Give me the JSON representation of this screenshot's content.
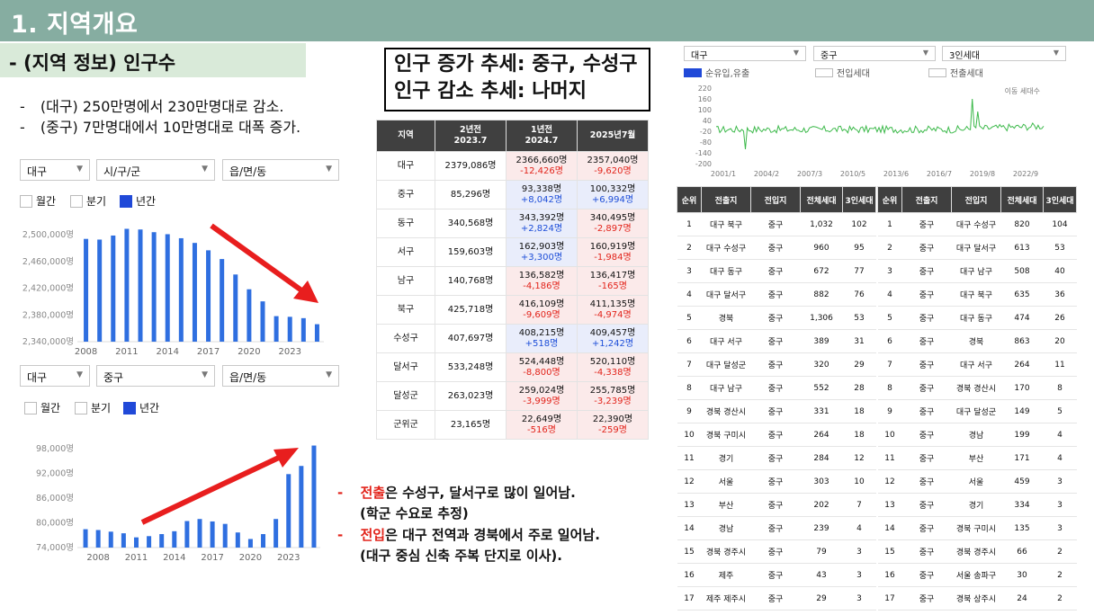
{
  "header": {
    "title": "1. 지역개요"
  },
  "subheader": {
    "title": "- (지역 정보) 인구수"
  },
  "bullets": [
    {
      "dash": "-",
      "text": "(대구) 250만명에서 230만명대로 감소."
    },
    {
      "dash": "-",
      "text": "(중구) 7만명대에서 10만명대로 대폭 증가."
    }
  ],
  "callout": {
    "line1": "인구 증가 추세: 중구, 수성구",
    "line2": "인구 감소 추세: 나머지"
  },
  "filters1": {
    "sido": "대구",
    "sigungu": "시/구/군",
    "eup": "읍/면/동"
  },
  "filters2": {
    "sido": "대구",
    "sigungu": "중구",
    "eup": "읍/면/동"
  },
  "period": {
    "monthly": "월간",
    "quarterly": "분기",
    "yearly": "년간"
  },
  "chart1": {
    "y_ticks": [
      "2,500,000명",
      "2,460,000명",
      "2,420,000명",
      "2,380,000명",
      "2,340,000명"
    ],
    "x_ticks": [
      "2008",
      "2011",
      "2014",
      "2017",
      "2020",
      "2023"
    ],
    "accent": "#2f6fe0",
    "arrow_color": "#e81e1e"
  },
  "chart2": {
    "y_ticks": [
      "98,000명",
      "92,000명",
      "86,000명",
      "80,000명",
      "74,000명"
    ],
    "x_ticks": [
      "2008",
      "2011",
      "2014",
      "2017",
      "2020",
      "2023"
    ],
    "accent": "#2f6fe0",
    "arrow_color": "#e81e1e"
  },
  "chart_data": [
    {
      "type": "bar",
      "categories": [
        "2008",
        "2009",
        "2010",
        "2011",
        "2012",
        "2013",
        "2014",
        "2015",
        "2016",
        "2017",
        "2018",
        "2019",
        "2020",
        "2021",
        "2022",
        "2023",
        "2024",
        "2025"
      ],
      "values": [
        2493000,
        2492000,
        2498000,
        2508000,
        2507000,
        2503000,
        2500000,
        2494000,
        2487000,
        2476000,
        2463000,
        2440000,
        2418000,
        2400000,
        2378000,
        2377000,
        2375000,
        2366000
      ],
      "ylim": [
        2340000,
        2510000
      ],
      "title": "",
      "xlabel": "",
      "ylabel": ""
    },
    {
      "type": "bar",
      "categories": [
        "2007",
        "2008",
        "2009",
        "2010",
        "2011",
        "2012",
        "2013",
        "2014",
        "2015",
        "2016",
        "2017",
        "2018",
        "2019",
        "2020",
        "2021",
        "2022",
        "2023",
        "2024",
        "2025"
      ],
      "values": [
        78500,
        78300,
        77900,
        77500,
        76500,
        76800,
        77300,
        78000,
        80500,
        81000,
        80400,
        79800,
        77700,
        76100,
        77300,
        81000,
        92000,
        94000,
        99000
      ],
      "ylim": [
        74000,
        100000
      ],
      "title": "",
      "xlabel": "",
      "ylabel": ""
    },
    {
      "type": "line",
      "series": [
        {
          "name": "순유입 유출"
        }
      ],
      "x_ticks": [
        "2001/1",
        "2004/2",
        "2007/3",
        "2010/5",
        "2013/6",
        "2016/7",
        "2019/8",
        "2022/9"
      ],
      "y_ticks": [
        "220",
        "160",
        "100",
        "40",
        "-20",
        "-80",
        "-140",
        "-200"
      ],
      "ylim": [
        -200,
        220
      ]
    }
  ],
  "pop_table": {
    "headers": [
      "지역",
      "2년전\n2023.7",
      "1년전\n2024.7",
      "2025년7월"
    ],
    "rows": [
      {
        "region": "대구",
        "y2": "2379,086명",
        "y1": "2366,660명",
        "y1c": "-12,426명",
        "y1t": "dec",
        "y0": "2357,040명",
        "y0c": "-9,620명",
        "y0t": "dec"
      },
      {
        "region": "중구",
        "y2": "85,296명",
        "y1": "93,338명",
        "y1c": "+8,042명",
        "y1t": "inc",
        "y0": "100,332명",
        "y0c": "+6,994명",
        "y0t": "inc"
      },
      {
        "region": "동구",
        "y2": "340,568명",
        "y1": "343,392명",
        "y1c": "+2,824명",
        "y1t": "inc",
        "y0": "340,495명",
        "y0c": "-2,897명",
        "y0t": "dec"
      },
      {
        "region": "서구",
        "y2": "159,603명",
        "y1": "162,903명",
        "y1c": "+3,300명",
        "y1t": "inc",
        "y0": "160,919명",
        "y0c": "-1,984명",
        "y0t": "dec"
      },
      {
        "region": "남구",
        "y2": "140,768명",
        "y1": "136,582명",
        "y1c": "-4,186명",
        "y1t": "dec",
        "y0": "136,417명",
        "y0c": "-165명",
        "y0t": "dec"
      },
      {
        "region": "북구",
        "y2": "425,718명",
        "y1": "416,109명",
        "y1c": "-9,609명",
        "y1t": "dec",
        "y0": "411,135명",
        "y0c": "-4,974명",
        "y0t": "dec"
      },
      {
        "region": "수성구",
        "y2": "407,697명",
        "y1": "408,215명",
        "y1c": "+518명",
        "y1t": "inc",
        "y0": "409,457명",
        "y0c": "+1,242명",
        "y0t": "inc"
      },
      {
        "region": "달서구",
        "y2": "533,248명",
        "y1": "524,448명",
        "y1c": "-8,800명",
        "y1t": "dec",
        "y0": "520,110명",
        "y0c": "-4,338명",
        "y0t": "dec"
      },
      {
        "region": "달성군",
        "y2": "263,023명",
        "y1": "259,024명",
        "y1c": "-3,999명",
        "y1t": "dec",
        "y0": "255,785명",
        "y0c": "-3,239명",
        "y0t": "dec"
      },
      {
        "region": "군위군",
        "y2": "23,165명",
        "y1": "22,649명",
        "y1c": "-516명",
        "y1t": "dec",
        "y0": "22,390명",
        "y0c": "-259명",
        "y0t": "dec"
      }
    ]
  },
  "move_filters": {
    "sido": "대구",
    "sigungu": "중구",
    "house": "3인세대"
  },
  "move_legend": {
    "net": "순유입,유출",
    "in": "전입세대",
    "out": "전출세대"
  },
  "move_chart": {
    "legend_right": "이동 세대수"
  },
  "table_left": {
    "headers": [
      "순위",
      "전출지",
      "전입지",
      "전체세대",
      "3인세대"
    ],
    "rows": [
      [
        "1",
        "대구 북구",
        "중구",
        "1,032",
        "102"
      ],
      [
        "2",
        "대구 수성구",
        "중구",
        "960",
        "95"
      ],
      [
        "3",
        "대구 동구",
        "중구",
        "672",
        "77"
      ],
      [
        "4",
        "대구 달서구",
        "중구",
        "882",
        "76"
      ],
      [
        "5",
        "경북",
        "중구",
        "1,306",
        "53"
      ],
      [
        "6",
        "대구 서구",
        "중구",
        "389",
        "31"
      ],
      [
        "7",
        "대구 달성군",
        "중구",
        "320",
        "29"
      ],
      [
        "8",
        "대구 남구",
        "중구",
        "552",
        "28"
      ],
      [
        "9",
        "경북 경산시",
        "중구",
        "331",
        "18"
      ],
      [
        "10",
        "경북 구미시",
        "중구",
        "264",
        "18"
      ],
      [
        "11",
        "경기",
        "중구",
        "284",
        "12"
      ],
      [
        "12",
        "서울",
        "중구",
        "303",
        "10"
      ],
      [
        "13",
        "부산",
        "중구",
        "202",
        "7"
      ],
      [
        "14",
        "경남",
        "중구",
        "239",
        "4"
      ],
      [
        "15",
        "경북 경주시",
        "중구",
        "79",
        "3"
      ],
      [
        "16",
        "제주",
        "중구",
        "43",
        "3"
      ],
      [
        "17",
        "제주 제주시",
        "중구",
        "29",
        "3"
      ]
    ]
  },
  "table_right": {
    "headers": [
      "순위",
      "전출지",
      "전입지",
      "전체세대",
      "3인세대"
    ],
    "rows": [
      [
        "1",
        "중구",
        "대구 수성구",
        "820",
        "104"
      ],
      [
        "2",
        "중구",
        "대구 달서구",
        "613",
        "53"
      ],
      [
        "3",
        "중구",
        "대구 남구",
        "508",
        "40"
      ],
      [
        "4",
        "중구",
        "대구 북구",
        "635",
        "36"
      ],
      [
        "5",
        "중구",
        "대구 동구",
        "474",
        "26"
      ],
      [
        "6",
        "중구",
        "경북",
        "863",
        "20"
      ],
      [
        "7",
        "중구",
        "대구 서구",
        "264",
        "11"
      ],
      [
        "8",
        "중구",
        "경북 경산시",
        "170",
        "8"
      ],
      [
        "9",
        "중구",
        "대구 달성군",
        "149",
        "5"
      ],
      [
        "10",
        "중구",
        "경남",
        "199",
        "4"
      ],
      [
        "11",
        "중구",
        "부산",
        "171",
        "4"
      ],
      [
        "12",
        "중구",
        "서울",
        "459",
        "3"
      ],
      [
        "13",
        "중구",
        "경기",
        "334",
        "3"
      ],
      [
        "14",
        "중구",
        "경북 구미시",
        "135",
        "3"
      ],
      [
        "15",
        "중구",
        "경북 경주시",
        "66",
        "2"
      ],
      [
        "16",
        "중구",
        "서울 송파구",
        "30",
        "2"
      ],
      [
        "17",
        "중구",
        "경북 상주시",
        "24",
        "2"
      ]
    ]
  },
  "notes": [
    {
      "dash": "-",
      "key": "전출",
      "rest": "은 수성구, 달서구로 많이 일어남.",
      "sub": "(학군 수요로 추정)"
    },
    {
      "dash": "-",
      "key": "전입",
      "rest": "은 대구 전역과 경북에서 주로 일어남.",
      "sub": "(대구 중심 신축 주복 단지로 이사)."
    }
  ]
}
